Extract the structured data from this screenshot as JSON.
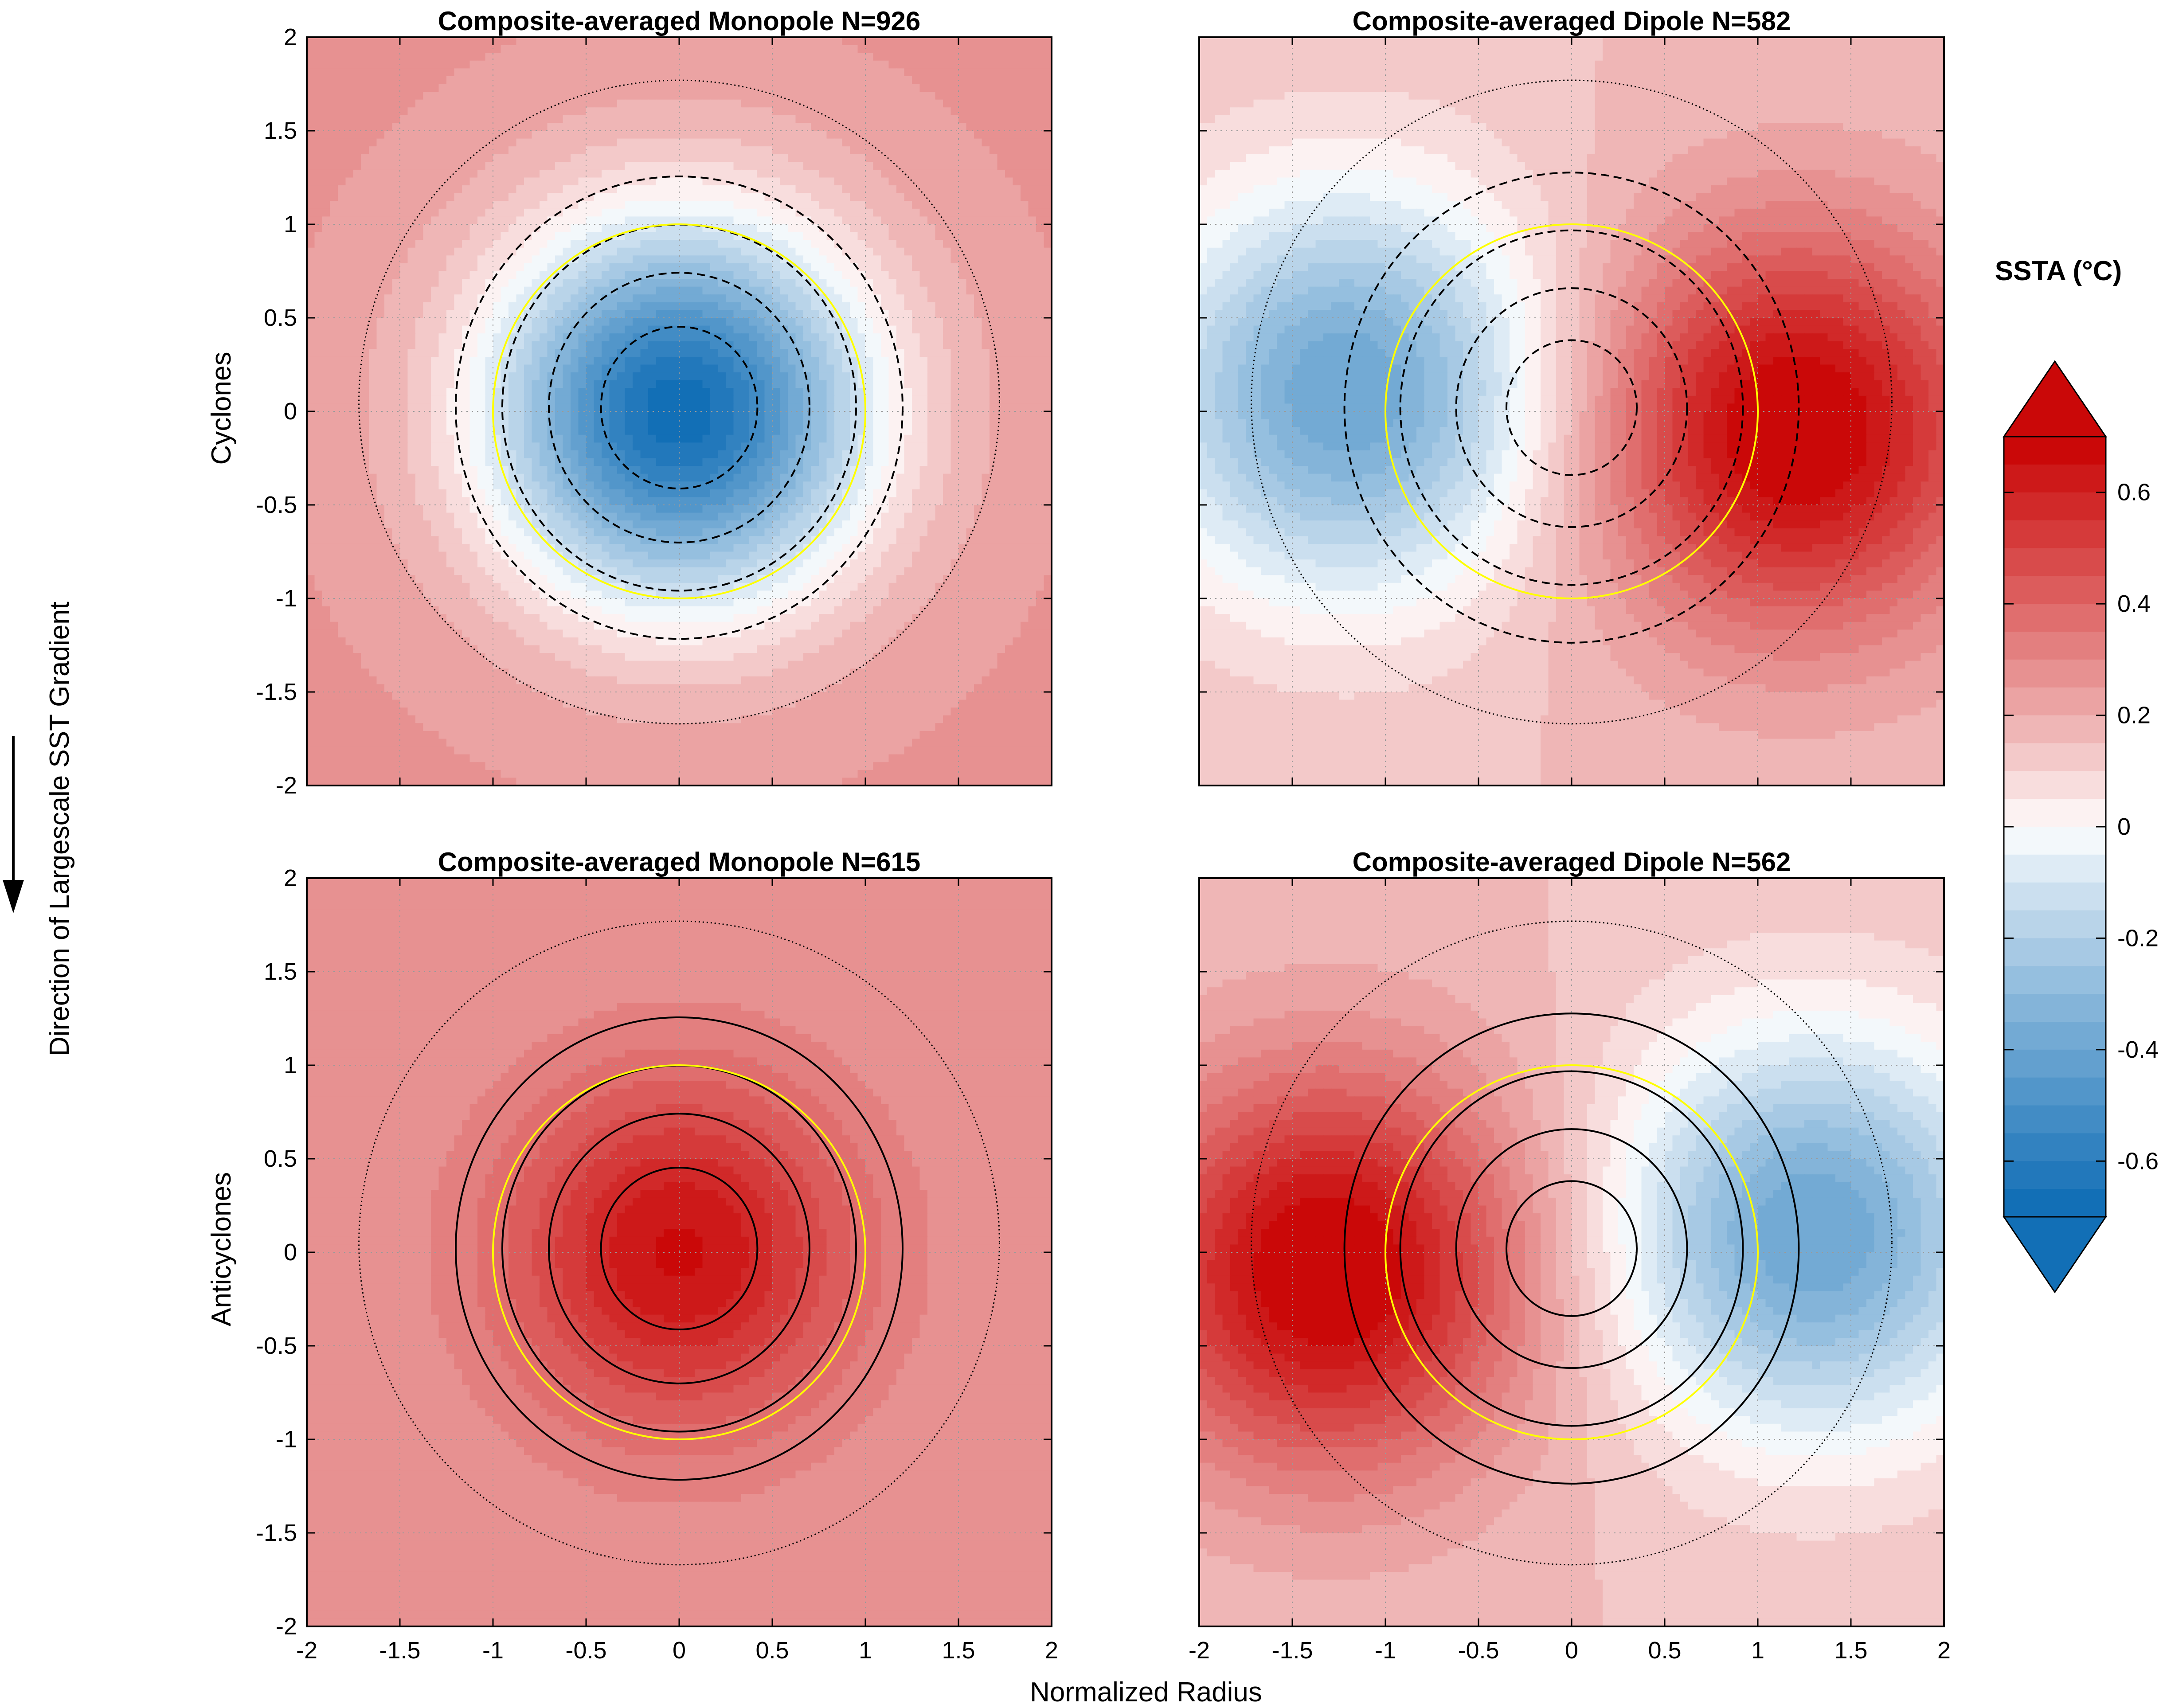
{
  "chart_data": {
    "type": "heatmap",
    "common_xlabel": "Normalized Radius",
    "side_label": "Direction of Largescale SST Gradient",
    "row_labels": [
      "Cyclones",
      "Anticyclones"
    ],
    "panels": [
      {
        "title": "Composite-averaged Monopole N=926",
        "row": "Cyclones",
        "kind": "monopole",
        "sign": -1,
        "center": [
          0.0,
          0.0
        ],
        "peak": -0.68,
        "background": 0.26,
        "xlim": [
          -2,
          2
        ],
        "ylim": [
          -2,
          2
        ]
      },
      {
        "title": "Composite-averaged Dipole N=582",
        "row": "Cyclones",
        "kind": "dipole",
        "sign": -1,
        "cold_center": [
          -1.2,
          0.1
        ],
        "warm_center": [
          1.2,
          -0.1
        ],
        "amplitude": 0.58,
        "background": 0.15,
        "xlim": [
          -2,
          2
        ],
        "ylim": [
          -2,
          2
        ]
      },
      {
        "title": "Composite-averaged Monopole N=615",
        "row": "Anticyclones",
        "kind": "monopole",
        "sign": 1,
        "center": [
          0.0,
          0.0
        ],
        "peak": 0.66,
        "background": 0.26,
        "xlim": [
          -2,
          2
        ],
        "ylim": [
          -2,
          2
        ]
      },
      {
        "title": "Composite-averaged Dipole N=562",
        "row": "Anticyclones",
        "kind": "dipole",
        "sign": 1,
        "cold_center": [
          1.3,
          0.1
        ],
        "warm_center": [
          -1.3,
          -0.1
        ],
        "amplitude": 0.58,
        "background": 0.15,
        "xlim": [
          -2,
          2
        ],
        "ylim": [
          -2,
          2
        ]
      }
    ],
    "x_ticks": [
      -2,
      -1.5,
      -1,
      -0.5,
      0,
      0.5,
      1,
      1.5,
      2
    ],
    "y_ticks": [
      -2,
      -1.5,
      -1,
      -0.5,
      0,
      0.5,
      1,
      1.5,
      2
    ],
    "x_tick_labels": [
      "-2",
      "-1.5",
      "-1",
      "-0.5",
      "0",
      "0.5",
      "1",
      "1.5",
      "2"
    ],
    "y_tick_labels": [
      "-2",
      "-1.5",
      "-1",
      "-0.5",
      "0",
      "0.5",
      "1",
      "1.5",
      "2"
    ],
    "eddy_radius_circle": {
      "radius": 1.0,
      "color": "#ffff00"
    },
    "colorbar": {
      "title": "SSTA (°C)",
      "range": [
        -0.7,
        0.7
      ],
      "ticks": [
        -0.6,
        -0.4,
        -0.2,
        0,
        0.2,
        0.4,
        0.6
      ],
      "tick_labels": [
        "-0.6",
        "-0.4",
        "-0.2",
        "0",
        "0.2",
        "0.4",
        "0.6"
      ],
      "extend": "both",
      "levels": 28,
      "cold_color": "#0a6ab4",
      "neutral_color": "#ffffff",
      "warm_color": "#c80000"
    },
    "grid": true
  }
}
